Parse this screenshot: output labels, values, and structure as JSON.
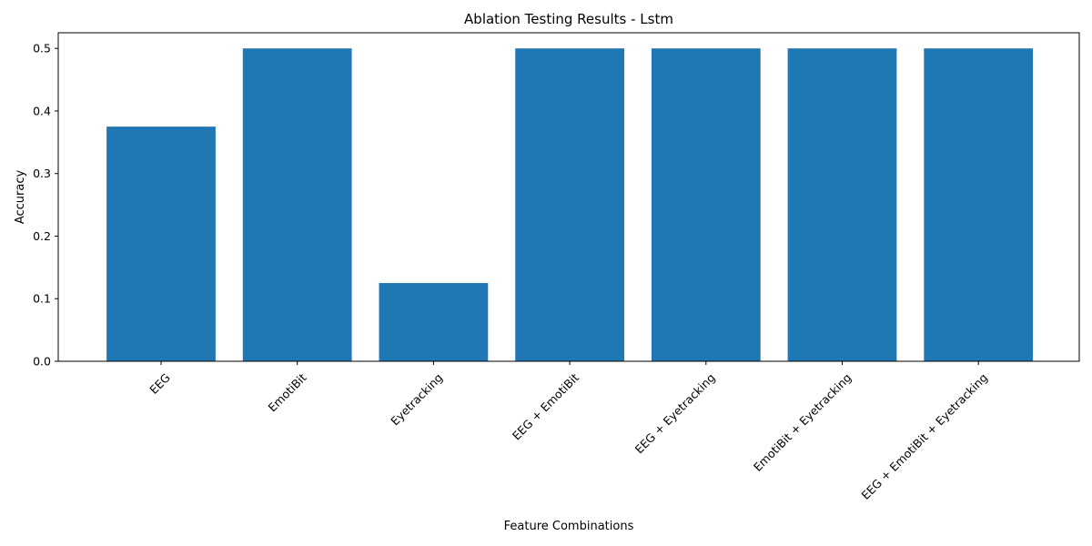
{
  "chart_data": {
    "type": "bar",
    "title": "Ablation Testing Results - Lstm",
    "xlabel": "Feature Combinations",
    "ylabel": "Accuracy",
    "categories": [
      "EEG",
      "EmotiBit",
      "Eyetracking",
      "EEG + EmotiBit",
      "EEG + Eyetracking",
      "EmotiBit + Eyetracking",
      "EEG + EmotiBit + Eyetracking"
    ],
    "values": [
      0.375,
      0.5,
      0.125,
      0.5,
      0.5,
      0.5,
      0.5
    ],
    "ylim": [
      0,
      0.525
    ],
    "yticks": [
      "0.0",
      "0.1",
      "0.2",
      "0.3",
      "0.4",
      "0.5"
    ],
    "grid": false,
    "bar_color": "#1f77b4",
    "xtick_rotation": "45 degrees, right-aligned"
  }
}
